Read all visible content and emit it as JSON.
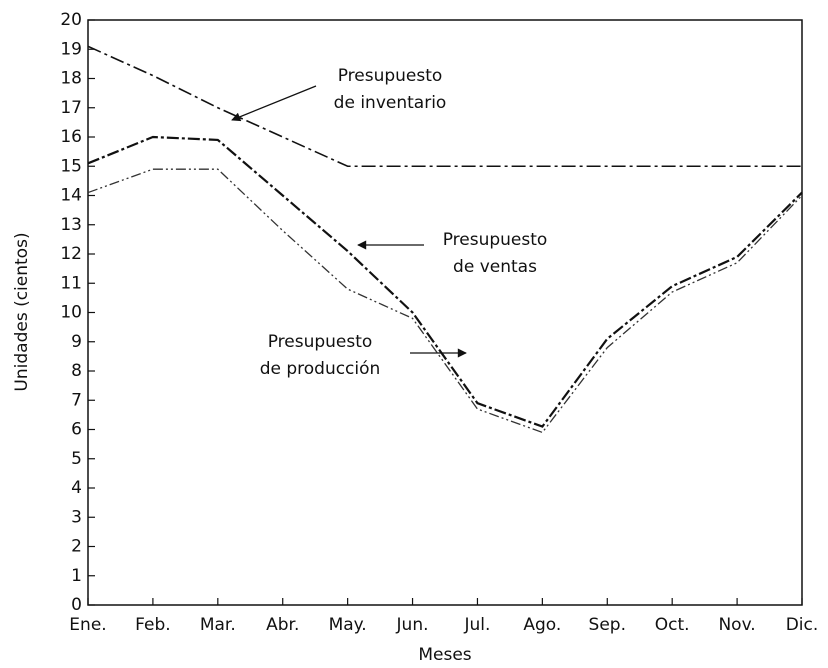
{
  "chart_data": {
    "type": "line",
    "x_label": "Meses",
    "y_label": "Unidades (cientos)",
    "categories": [
      "Ene.",
      "Feb.",
      "Mar.",
      "Abr.",
      "May.",
      "Jun.",
      "Jul.",
      "Ago.",
      "Sep.",
      "Oct.",
      "Nov.",
      "Dic."
    ],
    "series": [
      {
        "name": "Presupuesto de inventario",
        "color": "#111111",
        "values": [
          19.1,
          18.1,
          17.0,
          16.0,
          15,
          15,
          15,
          15,
          15,
          15,
          15,
          15
        ]
      },
      {
        "name": "Presupuesto de ventas",
        "color": "#111111",
        "values": [
          15.1,
          16,
          15.9,
          14,
          12.1,
          10,
          6.9,
          6.1,
          9.1,
          10.9,
          11.9,
          14.1
        ]
      },
      {
        "name": "Presupuesto de producción",
        "color": "#333333",
        "values": [
          14.1,
          14.9,
          14.9,
          12.8,
          10.8,
          9.8,
          6.7,
          5.9,
          8.8,
          10.7,
          11.7,
          14.0
        ]
      }
    ],
    "annotations": [
      {
        "text": [
          "Presupuesto",
          "de inventario"
        ]
      },
      {
        "text": [
          "Presupuesto",
          "de ventas"
        ]
      },
      {
        "text": [
          "Presupuesto",
          "de producción"
        ]
      }
    ],
    "ylim": [
      0,
      20
    ],
    "yticks": [
      0,
      1,
      2,
      3,
      4,
      5,
      6,
      7,
      8,
      9,
      10,
      11,
      12,
      13,
      14,
      15,
      16,
      17,
      18,
      19,
      20
    ]
  }
}
